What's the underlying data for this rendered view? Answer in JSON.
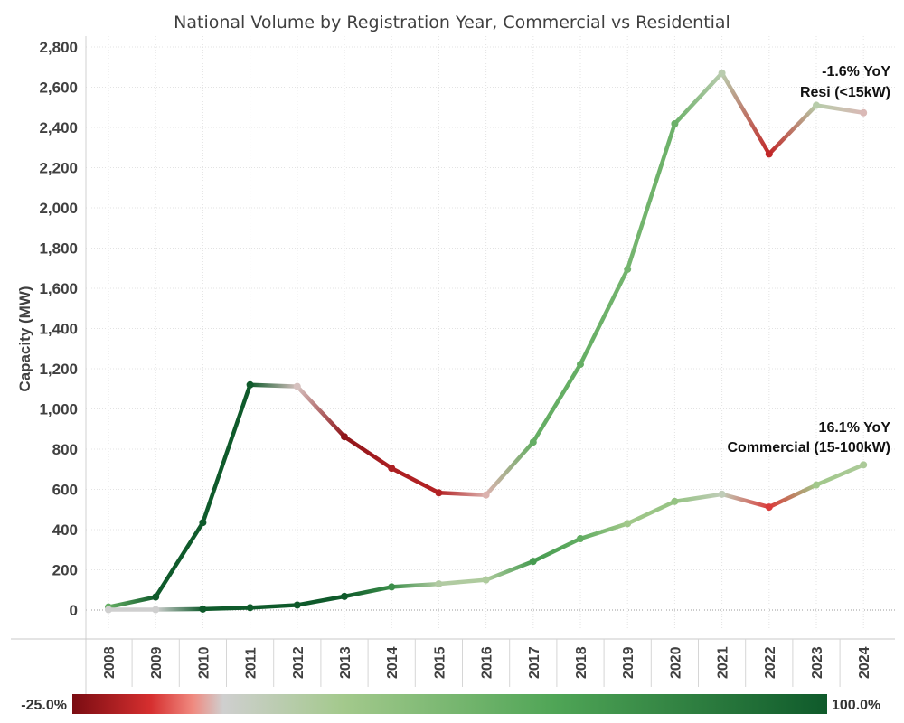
{
  "chart_data": {
    "type": "line",
    "title": "National Volume by Registration Year, Commercial vs Residential",
    "xlabel": "",
    "ylabel": "Capacity (MW)",
    "x": [
      "2008",
      "2009",
      "2010",
      "2011",
      "2012",
      "2013",
      "2014",
      "2015",
      "2016",
      "2017",
      "2018",
      "2019",
      "2020",
      "2021",
      "2022",
      "2023",
      "2024"
    ],
    "ylim": [
      0,
      2800
    ],
    "yticks": [
      0,
      200,
      400,
      600,
      800,
      1000,
      1200,
      1400,
      1600,
      1800,
      2000,
      2200,
      2400,
      2600,
      2800
    ],
    "ytick_labels": [
      "0",
      "200",
      "400",
      "600",
      "800",
      "1,000",
      "1,200",
      "1,400",
      "1,600",
      "1,800",
      "2,000",
      "2,200",
      "2,400",
      "2,600",
      "2,800"
    ],
    "grid": true,
    "series": [
      {
        "name": "Resi (<15kW)",
        "values": [
          15,
          65,
          435,
          1120,
          1112,
          862,
          705,
          583,
          572,
          835,
          1222,
          1695,
          2418,
          2670,
          2268,
          2510,
          2473
        ],
        "yoy": [
          0.46,
          3.33,
          5.69,
          1.57,
          -0.01,
          -0.22,
          -0.18,
          -0.17,
          -0.02,
          0.46,
          0.46,
          0.39,
          0.43,
          0.1,
          -0.15,
          0.11,
          -0.016
        ]
      },
      {
        "name": "Commercial (15-100kW)",
        "values": [
          2,
          2,
          5,
          12,
          25,
          68,
          115,
          130,
          150,
          242,
          355,
          430,
          540,
          576,
          512,
          622,
          722
        ],
        "yoy": [
          0.0,
          0.0,
          1.5,
          1.4,
          1.08,
          1.72,
          0.69,
          0.13,
          0.15,
          0.61,
          0.47,
          0.21,
          0.26,
          0.07,
          -0.11,
          0.21,
          0.161
        ]
      }
    ],
    "annotations": [
      {
        "series": "Resi (<15kW)",
        "line1": "-1.6% YoY",
        "line2": "Resi (<15kW)"
      },
      {
        "series": "Commercial (15-100kW)",
        "line1": "16.1% YoY",
        "line2": "Commercial (15-100kW)"
      }
    ],
    "color_legend": {
      "min_label": "-25.0%",
      "max_label": "100.0%",
      "min": -0.25,
      "max": 1.0,
      "stops": [
        {
          "value": -0.25,
          "color": "#7a0c12"
        },
        {
          "value": -0.12,
          "color": "#d62f2f"
        },
        {
          "value": -0.05,
          "color": "#f08a80"
        },
        {
          "value": 0.0,
          "color": "#cfcfcf"
        },
        {
          "value": 0.2,
          "color": "#a3c98c"
        },
        {
          "value": 0.55,
          "color": "#4fa556"
        },
        {
          "value": 1.0,
          "color": "#0f5a2b"
        }
      ]
    }
  }
}
